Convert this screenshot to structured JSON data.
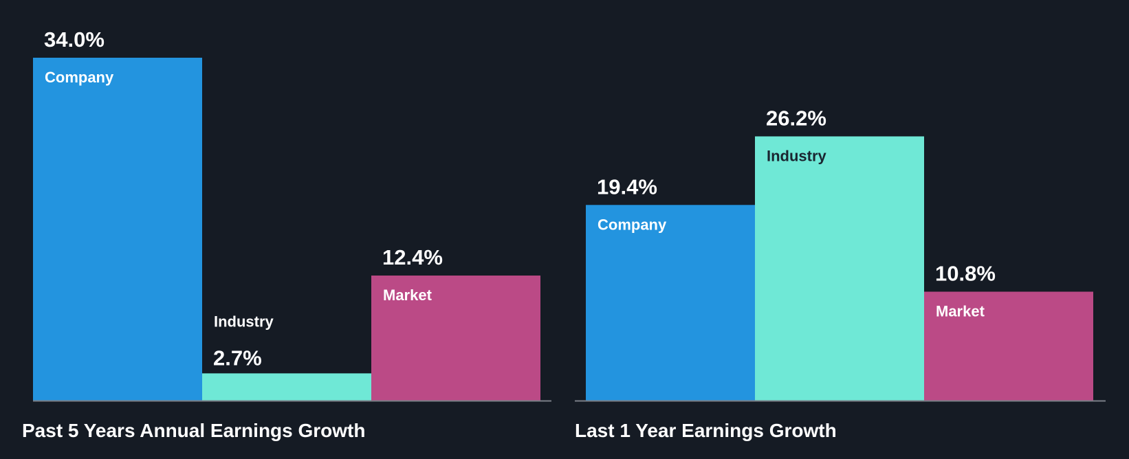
{
  "colors": {
    "background": "#151b24",
    "company": "#2394df",
    "industry": "#6fe8d6",
    "market": "#bb4a86",
    "baseline": "#7a7f87",
    "label_light": "#ffffff",
    "label_dark": "#1a2530"
  },
  "chart_data": [
    {
      "type": "bar",
      "title": "Past 5 Years Annual Earnings Growth",
      "categories": [
        "Company",
        "Industry",
        "Market"
      ],
      "values": [
        34.0,
        2.7,
        12.4
      ],
      "value_labels": [
        "34.0%",
        "2.7%",
        "12.4%"
      ],
      "ylim": [
        0,
        34.0
      ],
      "grid": false,
      "legend": "none"
    },
    {
      "type": "bar",
      "title": "Last 1 Year Earnings Growth",
      "categories": [
        "Company",
        "Industry",
        "Market"
      ],
      "values": [
        19.4,
        26.2,
        10.8
      ],
      "value_labels": [
        "19.4%",
        "26.2%",
        "10.8%"
      ],
      "ylim": [
        0,
        34.0
      ],
      "grid": false,
      "legend": "none"
    }
  ]
}
